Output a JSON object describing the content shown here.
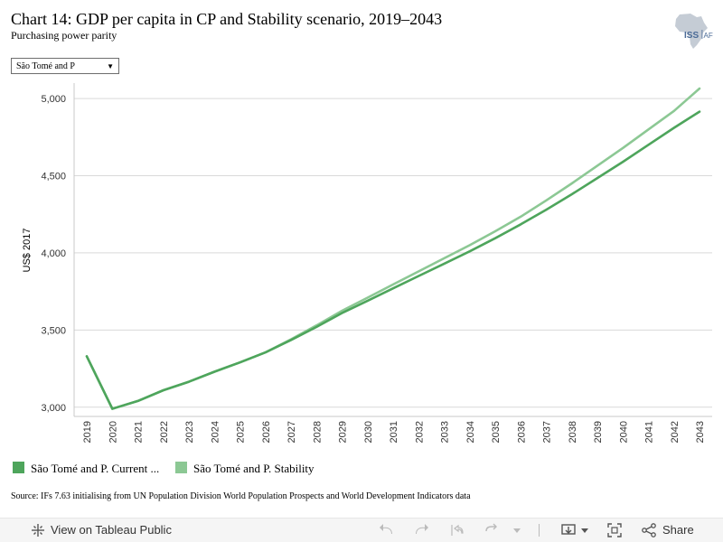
{
  "header": {
    "title": "Chart 14: GDP per capita in CP and Stability scenario, 2019–2043",
    "subtitle": "Purchasing power parity",
    "logo_text": "ISS",
    "logo_suffix": "AF"
  },
  "filter": {
    "selected": "São Tomé and P"
  },
  "chart_data": {
    "type": "line",
    "title": "Chart 14: GDP per capita in CP and Stability scenario, 2019–2043",
    "subtitle": "Purchasing power parity",
    "xlabel": "",
    "ylabel": "US$ 2017",
    "x": [
      2019,
      2020,
      2021,
      2022,
      2023,
      2024,
      2025,
      2026,
      2027,
      2028,
      2029,
      2030,
      2031,
      2032,
      2033,
      2034,
      2035,
      2036,
      2037,
      2038,
      2039,
      2040,
      2041,
      2042,
      2043
    ],
    "x_tick_labels": [
      "2019",
      "2020",
      "2021",
      "2022",
      "2023",
      "2024",
      "2025",
      "2026",
      "2027",
      "2028",
      "2029",
      "2030",
      "2031",
      "2032",
      "2033",
      "2034",
      "2035",
      "2036",
      "2037",
      "2038",
      "2039",
      "2040",
      "2041",
      "2042",
      "2043"
    ],
    "ylim": [
      2940,
      5100
    ],
    "y_ticks": [
      3000,
      3500,
      4000,
      4500,
      5000
    ],
    "y_tick_labels": [
      "3,000",
      "3,500",
      "4,000",
      "4,500",
      "5,000"
    ],
    "grid": true,
    "legend_position": "bottom-left",
    "series": [
      {
        "name": "São Tomé and P. Current ...",
        "color": "#4ea55c",
        "values": [
          3330,
          2990,
          3040,
          3110,
          3165,
          3230,
          3290,
          3355,
          3435,
          3520,
          3610,
          3690,
          3770,
          3850,
          3930,
          4010,
          4095,
          4185,
          4280,
          4380,
          4485,
          4590,
          4700,
          4810,
          4915
        ]
      },
      {
        "name": "São Tomé and P. Stability",
        "color": "#8cc894",
        "values": [
          3330,
          2990,
          3040,
          3110,
          3165,
          3230,
          3290,
          3355,
          3440,
          3530,
          3625,
          3710,
          3795,
          3880,
          3965,
          4050,
          4140,
          4235,
          4340,
          4450,
          4565,
          4680,
          4800,
          4920,
          5065
        ]
      }
    ]
  },
  "legend": {
    "items": [
      {
        "label": "São Tomé and P. Current ...",
        "color": "#4ea55c"
      },
      {
        "label": "São Tomé and P. Stability",
        "color": "#8cc894"
      }
    ]
  },
  "source": "Source: IFs 7.63 initialising from UN Population Division World Population Prospects and World Development Indicators data",
  "toolbar": {
    "view_label": "View on Tableau Public",
    "share_label": "Share"
  }
}
